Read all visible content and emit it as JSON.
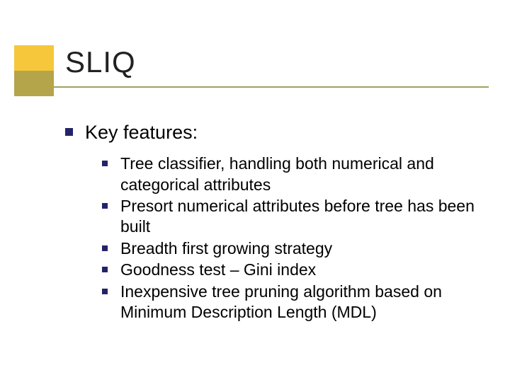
{
  "colors": {
    "deco_yellow": "#f6c73a",
    "deco_olive": "#b5a54a",
    "underline": "#a0a060",
    "bullet_level1": "#23236b",
    "bullet_level2": "#23236b",
    "title_text": "#222222",
    "body_text": "#000000",
    "background": "#ffffff"
  },
  "typography": {
    "title_fontsize": 42,
    "level1_fontsize": 27,
    "level2_fontsize": 23,
    "title_weight": 400,
    "body_weight": 400
  },
  "title": "SLIQ",
  "level1": {
    "text": "Key features:",
    "items": [
      {
        "text": "Tree classifier, handling both numerical and categorical attributes"
      },
      {
        "text": "Presort numerical attributes before tree has been built"
      },
      {
        "text": "Breadth first growing strategy"
      },
      {
        "text": "Goodness test – Gini index"
      },
      {
        "text": "Inexpensive tree pruning algorithm based on Minimum Description Length (MDL)"
      }
    ]
  }
}
